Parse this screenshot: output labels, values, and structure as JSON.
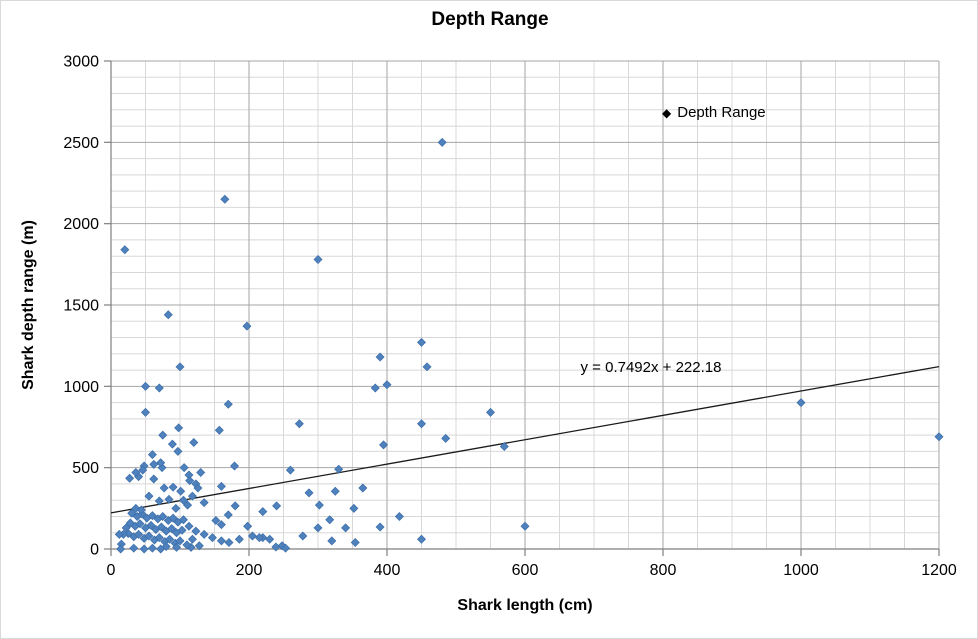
{
  "chart_data": {
    "type": "scatter",
    "title": "Depth Range",
    "xlabel": "Shark length (cm)",
    "ylabel": "Shark depth range (m)",
    "xlim": [
      0,
      1200
    ],
    "ylim": [
      0,
      3000
    ],
    "x_major_ticks": [
      0,
      200,
      400,
      600,
      800,
      1000,
      1200
    ],
    "y_major_ticks": [
      0,
      500,
      1000,
      1500,
      2000,
      2500,
      3000
    ],
    "x_minor_step": 50,
    "y_minor_step": 100,
    "grid": "major and minor, both axes",
    "legend": {
      "label": "Depth Range",
      "position": "inside-top-right"
    },
    "series_name": "Depth Range",
    "marker": {
      "shape": "diamond",
      "color": "#4F81BD",
      "border": "#3A6DA8"
    },
    "trendline": {
      "label": "y = 0.7492x + 222.18",
      "slope": 0.7492,
      "intercept": 222.18,
      "x_start": 0,
      "x_end": 1200,
      "color": "#1a1a1a"
    },
    "style": {
      "background": "#FFFFFF",
      "chart_border": "#D9D9D9",
      "gridline_minor": "#D8D8D8",
      "gridline_major": "#A6A6A6",
      "axis_color": "#7F7F7F",
      "tick_label_color": "#000000"
    },
    "points": [
      [
        20,
        1840
      ],
      [
        480,
        2500
      ],
      [
        165,
        2150
      ],
      [
        300,
        1780
      ],
      [
        197,
        1370
      ],
      [
        83,
        1440
      ],
      [
        100,
        1120
      ],
      [
        450,
        1270
      ],
      [
        458,
        1120
      ],
      [
        390,
        1180
      ],
      [
        400,
        1010
      ],
      [
        383,
        990
      ],
      [
        50,
        1000
      ],
      [
        70,
        990
      ],
      [
        170,
        890
      ],
      [
        50,
        840
      ],
      [
        1000,
        900
      ],
      [
        1200,
        690
      ],
      [
        550,
        840
      ],
      [
        485,
        680
      ],
      [
        570,
        630
      ],
      [
        600,
        140
      ],
      [
        450,
        770
      ],
      [
        273,
        770
      ],
      [
        395,
        640
      ],
      [
        450,
        60
      ],
      [
        98,
        745
      ],
      [
        157,
        730
      ],
      [
        75,
        700
      ],
      [
        89,
        645
      ],
      [
        120,
        655
      ],
      [
        97,
        600
      ],
      [
        60,
        580
      ],
      [
        48,
        510
      ],
      [
        62,
        520
      ],
      [
        74,
        500
      ],
      [
        72,
        530
      ],
      [
        106,
        500
      ],
      [
        179,
        510
      ],
      [
        27,
        435
      ],
      [
        40,
        445
      ],
      [
        62,
        430
      ],
      [
        77,
        375
      ],
      [
        90,
        380
      ],
      [
        101,
        355
      ],
      [
        55,
        325
      ],
      [
        70,
        295
      ],
      [
        84,
        305
      ],
      [
        46,
        485
      ],
      [
        36,
        470
      ],
      [
        130,
        470
      ],
      [
        113,
        455
      ],
      [
        114,
        420
      ],
      [
        123,
        400
      ],
      [
        126,
        375
      ],
      [
        160,
        385
      ],
      [
        118,
        325
      ],
      [
        135,
        285
      ],
      [
        111,
        270
      ],
      [
        180,
        265
      ],
      [
        240,
        265
      ],
      [
        260,
        485
      ],
      [
        330,
        490
      ],
      [
        287,
        345
      ],
      [
        325,
        355
      ],
      [
        365,
        375
      ],
      [
        302,
        270
      ],
      [
        352,
        250
      ],
      [
        220,
        230
      ],
      [
        170,
        210
      ],
      [
        418,
        200
      ],
      [
        152,
        175
      ],
      [
        160,
        150
      ],
      [
        198,
        140
      ],
      [
        113,
        140
      ],
      [
        123,
        110
      ],
      [
        135,
        90
      ],
      [
        118,
        60
      ],
      [
        147,
        70
      ],
      [
        160,
        50
      ],
      [
        171,
        40
      ],
      [
        186,
        60
      ],
      [
        205,
        80
      ],
      [
        220,
        70
      ],
      [
        128,
        20
      ],
      [
        116,
        10
      ],
      [
        317,
        180
      ],
      [
        300,
        130
      ],
      [
        340,
        130
      ],
      [
        390,
        135
      ],
      [
        278,
        80
      ],
      [
        215,
        70
      ],
      [
        230,
        60
      ],
      [
        248,
        20
      ],
      [
        239,
        12
      ],
      [
        253,
        5
      ],
      [
        320,
        50
      ],
      [
        354,
        40
      ],
      [
        30,
        220
      ],
      [
        38,
        200
      ],
      [
        45,
        215
      ],
      [
        52,
        190
      ],
      [
        60,
        205
      ],
      [
        68,
        185
      ],
      [
        75,
        200
      ],
      [
        83,
        175
      ],
      [
        90,
        190
      ],
      [
        97,
        165
      ],
      [
        105,
        180
      ],
      [
        28,
        160
      ],
      [
        35,
        140
      ],
      [
        42,
        155
      ],
      [
        50,
        130
      ],
      [
        58,
        145
      ],
      [
        65,
        120
      ],
      [
        73,
        135
      ],
      [
        80,
        110
      ],
      [
        88,
        125
      ],
      [
        95,
        100
      ],
      [
        103,
        115
      ],
      [
        25,
        95
      ],
      [
        33,
        75
      ],
      [
        40,
        90
      ],
      [
        48,
        65
      ],
      [
        55,
        80
      ],
      [
        63,
        55
      ],
      [
        70,
        70
      ],
      [
        78,
        45
      ],
      [
        85,
        60
      ],
      [
        93,
        35
      ],
      [
        100,
        50
      ],
      [
        22,
        130
      ],
      [
        18,
        90
      ],
      [
        33,
        5
      ],
      [
        48,
        0
      ],
      [
        60,
        5
      ],
      [
        72,
        0
      ],
      [
        80,
        15
      ],
      [
        95,
        10
      ],
      [
        110,
        25
      ],
      [
        12,
        90
      ],
      [
        15,
        30
      ],
      [
        14,
        0
      ],
      [
        105,
        300
      ],
      [
        94,
        250
      ],
      [
        36,
        250
      ],
      [
        44,
        240
      ]
    ]
  }
}
